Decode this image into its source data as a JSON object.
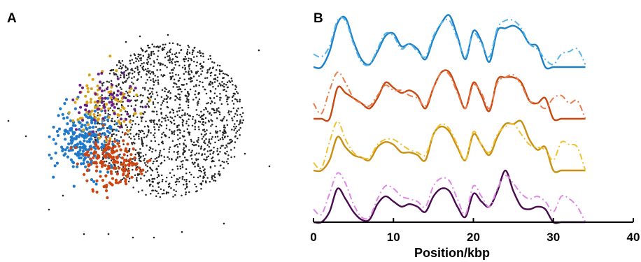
{
  "panels": {
    "a_label": "A",
    "b_label": "B"
  },
  "chart_data": [
    {
      "type": "scatter",
      "panel": "A",
      "title": "",
      "xlabel": "",
      "ylabel": "",
      "axes_visible": false,
      "grid": false,
      "series": [
        {
          "name": "",
          "color": "#222222",
          "count": 1450,
          "region": "main cloud"
        },
        {
          "name": "",
          "color": "#1f78c8",
          "count": 260,
          "region": "left"
        },
        {
          "name": "",
          "color": "#cc4410",
          "count": 180,
          "region": "lower-left"
        },
        {
          "name": "",
          "color": "#d8a012",
          "count": 90,
          "region": "upper-left"
        },
        {
          "name": "",
          "color": "#6a1e8a",
          "count": 60,
          "region": "upper-left"
        }
      ]
    },
    {
      "type": "line",
      "panel": "B",
      "title": "",
      "xlabel": "Position/kbp",
      "ylabel": "",
      "xlim": [
        0,
        40
      ],
      "xticks": [
        0,
        10,
        20,
        30,
        40
      ],
      "yaxis_visible": false,
      "grid": false,
      "legend": "none",
      "x": [
        0,
        1,
        2,
        3,
        4,
        5,
        6,
        7,
        8,
        9,
        10,
        11,
        12,
        13,
        14,
        15,
        16,
        17,
        18,
        19,
        20,
        21,
        22,
        23,
        24,
        25,
        26,
        27,
        28,
        29,
        30,
        31,
        32,
        33,
        34
      ],
      "series": [
        {
          "name": "",
          "color": "#1a80c8",
          "style": "solid",
          "track": 1,
          "values": [
            0,
            0,
            0.3,
            0.85,
            0.95,
            0.5,
            0.15,
            0.05,
            0.3,
            0.6,
            0.65,
            0.4,
            0.45,
            0.35,
            0.15,
            0.55,
            0.85,
            1.0,
            0.6,
            0.15,
            0.7,
            0.5,
            0.1,
            0.7,
            0.75,
            0.8,
            0.7,
            0.45,
            0.4,
            0,
            0,
            0,
            0,
            0,
            0
          ]
        },
        {
          "name": "",
          "color": "#5ab4e8",
          "style": "dashed",
          "track": 1,
          "values": [
            0.25,
            0.2,
            0.4,
            0.9,
            0.9,
            0.45,
            0.1,
            0.05,
            0.35,
            0.65,
            0.6,
            0.35,
            0.45,
            0.3,
            0.2,
            0.6,
            0.85,
            0.9,
            0.55,
            0.2,
            0.65,
            0.45,
            0.2,
            0.75,
            0.9,
            0.9,
            0.75,
            0.45,
            0.35,
            0.15,
            0.05,
            0.25,
            0.3,
            0.35,
            0.05
          ]
        },
        {
          "name": "",
          "color": "#c84810",
          "style": "solid",
          "track": 2,
          "values": [
            0,
            0,
            0,
            0.6,
            0.5,
            0.4,
            0.3,
            0.2,
            0.4,
            0.7,
            0.6,
            0.5,
            0.55,
            0.45,
            0.2,
            0.6,
            0.9,
            0.9,
            0.55,
            0.2,
            0.7,
            0.45,
            0.15,
            0.75,
            0.8,
            0.8,
            0.7,
            0.35,
            0.3,
            0.4,
            0,
            0,
            0,
            0,
            0
          ]
        },
        {
          "name": "",
          "color": "#ec7a4a",
          "style": "dashed",
          "track": 2,
          "values": [
            0.3,
            0.1,
            0.55,
            0.9,
            0.7,
            0.4,
            0.3,
            0.25,
            0.45,
            0.65,
            0.55,
            0.55,
            0.45,
            0.4,
            0.25,
            0.6,
            0.9,
            0.85,
            0.5,
            0.2,
            0.65,
            0.5,
            0.2,
            0.7,
            0.8,
            0.85,
            0.65,
            0.35,
            0.3,
            0.2,
            0.4,
            0.45,
            0.3,
            0.35,
            0
          ]
        },
        {
          "name": "",
          "color": "#c89010",
          "style": "solid",
          "track": 3,
          "values": [
            0,
            0,
            0.2,
            0.65,
            0.45,
            0.3,
            0.25,
            0.2,
            0.45,
            0.55,
            0.5,
            0.35,
            0.35,
            0.3,
            0.2,
            0.7,
            0.85,
            0.75,
            0.45,
            0.2,
            0.7,
            0.5,
            0.3,
            0.65,
            0.9,
            0.9,
            0.95,
            0.6,
            0.4,
            0.45,
            0,
            0,
            0,
            0,
            0
          ]
        },
        {
          "name": "",
          "color": "#f2c030",
          "style": "dashed",
          "track": 3,
          "values": [
            0.15,
            0.05,
            0.55,
            0.95,
            0.6,
            0.35,
            0.25,
            0.25,
            0.5,
            0.6,
            0.6,
            0.5,
            0.4,
            0.35,
            0.3,
            0.7,
            0.9,
            0.8,
            0.5,
            0.2,
            0.75,
            0.5,
            0.35,
            0.7,
            0.85,
            0.9,
            0.7,
            0.5,
            0.45,
            0.4,
            0.2,
            0.55,
            0.5,
            0.45,
            0
          ]
        },
        {
          "name": "",
          "color": "#4a0a50",
          "style": "solid",
          "track": 4,
          "values": [
            0,
            0,
            0.2,
            0.65,
            0.45,
            0.2,
            0.05,
            0.05,
            0.35,
            0.5,
            0.4,
            0.3,
            0.35,
            0.3,
            0.2,
            0.5,
            0.65,
            0.6,
            0.3,
            0.1,
            0.55,
            0.4,
            0.3,
            0.6,
            1.0,
            0.6,
            0.3,
            0.25,
            0.3,
            0.25,
            0,
            0,
            0,
            0,
            0
          ]
        },
        {
          "name": "",
          "color": "#e088e8",
          "style": "dashed",
          "track": 4,
          "values": [
            0.25,
            0.15,
            0.55,
            0.95,
            0.75,
            0.35,
            0.1,
            0.1,
            0.45,
            0.7,
            0.65,
            0.5,
            0.45,
            0.4,
            0.3,
            0.7,
            0.85,
            0.8,
            0.45,
            0.15,
            0.7,
            0.5,
            0.3,
            0.65,
            0.9,
            0.75,
            0.55,
            0.45,
            0.5,
            0.4,
            0.2,
            0.5,
            0.45,
            0.3,
            0
          ]
        }
      ]
    }
  ]
}
